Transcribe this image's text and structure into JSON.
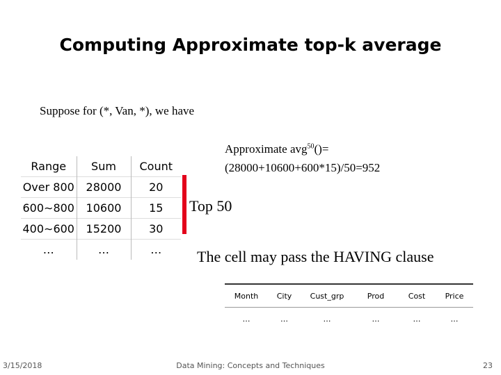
{
  "header": {
    "title": "Computing Approximate top-k average"
  },
  "intro": "Suppose for (*, Van, *), we have",
  "table": {
    "columns": [
      "Range",
      "Sum",
      "Count"
    ],
    "rows": [
      [
        "Over 800",
        "28000",
        "20"
      ],
      [
        "600∼800",
        "10600",
        "15"
      ],
      [
        "400∼600",
        "15200",
        "30"
      ],
      [
        "…",
        "…",
        "…"
      ]
    ]
  },
  "formula": {
    "label": "Approximate avg",
    "superscript": "50",
    "suffix": "()=",
    "expression": "(28000+10600+600*15)/50=952"
  },
  "bracket_label": "Top 50",
  "note": "The cell may pass the HAVING clause",
  "cell_table": {
    "columns": [
      "Month",
      "City",
      "Cust_grp",
      "Prod",
      "Cost",
      "Price"
    ],
    "rows": [
      [
        "…",
        "…",
        "…",
        "…",
        "…",
        "…"
      ]
    ]
  },
  "footer": {
    "date": "3/15/2018",
    "center": "Data Mining: Concepts and Techniques",
    "page": "23"
  }
}
